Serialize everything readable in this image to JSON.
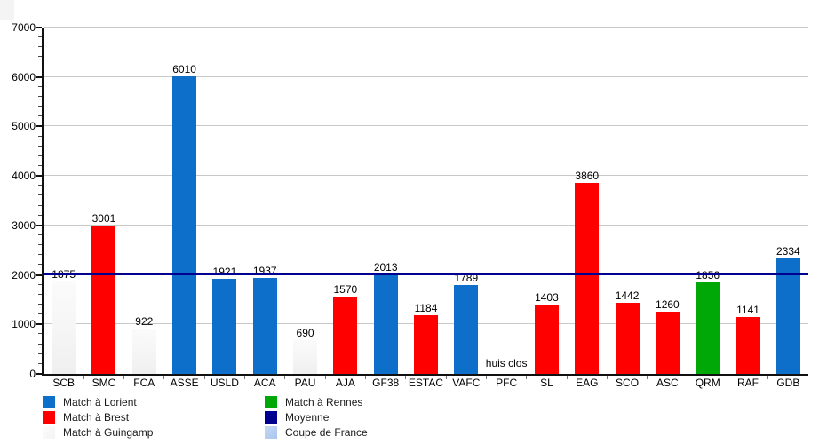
{
  "chart_data": {
    "type": "bar",
    "title": "",
    "categories": [
      "SCB",
      "SMC",
      "FCA",
      "ASSE",
      "USLD",
      "ACA",
      "PAU",
      "AJA",
      "GF38",
      "ESTAC",
      "VAFC",
      "PFC",
      "SL",
      "EAG",
      "SCO",
      "ASC",
      "QRM",
      "RAF",
      "GDB"
    ],
    "values": [
      1875,
      3001,
      922,
      6010,
      1921,
      1937,
      690,
      1570,
      2013,
      1184,
      1789,
      null,
      1403,
      3860,
      1442,
      1260,
      1856,
      1141,
      2334
    ],
    "venues": [
      "guingamp",
      "brest",
      "guingamp",
      "lorient",
      "lorient",
      "lorient",
      "guingamp",
      "brest",
      "lorient",
      "brest",
      "lorient",
      null,
      "brest",
      "brest",
      "brest",
      "brest",
      "rennes",
      "brest",
      "lorient"
    ],
    "no_match_note": "huis clos",
    "venue_colors": {
      "lorient": "#0D6FC9",
      "brest": "#FF0000",
      "guingamp": "#F7F7F7",
      "rennes": "#00A807",
      "coupe_de_france": "#AECAF0"
    },
    "average_line": {
      "label": "Moyenne",
      "value": 2012,
      "color": "#000090"
    },
    "y_axis": {
      "min": 0,
      "max": 7000,
      "major_step": 1000,
      "minor_step": 200,
      "tick_labels": [
        "0",
        "1000",
        "2000",
        "3000",
        "4000",
        "5000",
        "6000",
        "7000"
      ]
    },
    "x_axis": {
      "label": ""
    },
    "grid": true,
    "legend_position": "bottom-left-two-columns",
    "legend": [
      {
        "label": "Match à Lorient",
        "color": "#0D6FC9",
        "swatch": "blue"
      },
      {
        "label": "Match à Brest",
        "color": "#FF0000",
        "swatch": "red"
      },
      {
        "label": "Match à Guingamp",
        "color": "#F7F7F7",
        "swatch": "white"
      },
      {
        "label": "Match à Rennes",
        "color": "#00A807",
        "swatch": "green"
      },
      {
        "label": "Moyenne",
        "color": "#000090",
        "swatch": "navy"
      },
      {
        "label": "Coupe de France",
        "color": "#AECAF0",
        "swatch": "lightblue"
      }
    ]
  }
}
